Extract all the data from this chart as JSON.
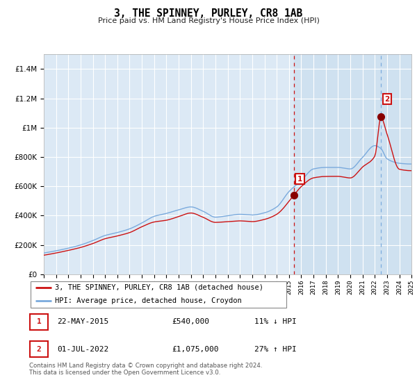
{
  "title": "3, THE SPINNEY, PURLEY, CR8 1AB",
  "subtitle": "Price paid vs. HM Land Registry's House Price Index (HPI)",
  "hpi_label": "HPI: Average price, detached house, Croydon",
  "property_label": "3, THE SPINNEY, PURLEY, CR8 1AB (detached house)",
  "footer": "Contains HM Land Registry data © Crown copyright and database right 2024.\nThis data is licensed under the Open Government Licence v3.0.",
  "sale1_date": "22-MAY-2015",
  "sale1_price": 540000,
  "sale1_hpi_diff": "11% ↓ HPI",
  "sale2_date": "01-JUL-2022",
  "sale2_price": 1075000,
  "sale2_hpi_diff": "27% ↑ HPI",
  "sale1_x": 2015.39,
  "sale2_x": 2022.5,
  "ylim": [
    0,
    1500000
  ],
  "xlim_start": 1995,
  "xlim_end": 2025,
  "bg_color": "#dce9f5",
  "grid_color": "#ffffff",
  "line_hpi_color": "#7aaadd",
  "line_prop_color": "#cc1111",
  "vline1_color": "#cc1111",
  "vline2_color": "#7aaadd",
  "marker_color": "#880000",
  "highlight_bg": "#cde0f0",
  "hpi_keypoints_x": [
    1995,
    1996,
    1997,
    1998,
    1999,
    2000,
    2001,
    2002,
    2003,
    2004,
    2005,
    2006,
    2007,
    2008,
    2009,
    2010,
    2011,
    2012,
    2013,
    2014,
    2015,
    2016,
    2017,
    2018,
    2019,
    2020,
    2021,
    2022,
    2022.5,
    2023,
    2024,
    2025
  ],
  "hpi_keypoints_y": [
    145000,
    160000,
    178000,
    200000,
    230000,
    265000,
    285000,
    310000,
    350000,
    395000,
    415000,
    440000,
    460000,
    430000,
    390000,
    400000,
    410000,
    405000,
    420000,
    460000,
    565000,
    640000,
    720000,
    730000,
    730000,
    720000,
    800000,
    880000,
    860000,
    790000,
    760000,
    755000
  ],
  "prop_keypoints_x": [
    1995,
    1996,
    1997,
    1998,
    1999,
    2000,
    2001,
    2002,
    2003,
    2004,
    2005,
    2006,
    2007,
    2008,
    2009,
    2010,
    2011,
    2012,
    2013,
    2014,
    2015.39,
    2016,
    2017,
    2018,
    2019,
    2020,
    2021,
    2022,
    2022.5,
    2023,
    2024,
    2025
  ],
  "prop_keypoints_y": [
    130000,
    145000,
    163000,
    183000,
    210000,
    243000,
    262000,
    285000,
    325000,
    358000,
    370000,
    395000,
    420000,
    390000,
    355000,
    360000,
    365000,
    360000,
    375000,
    410000,
    540000,
    600000,
    660000,
    670000,
    670000,
    660000,
    735000,
    810000,
    1075000,
    960000,
    720000,
    710000
  ]
}
